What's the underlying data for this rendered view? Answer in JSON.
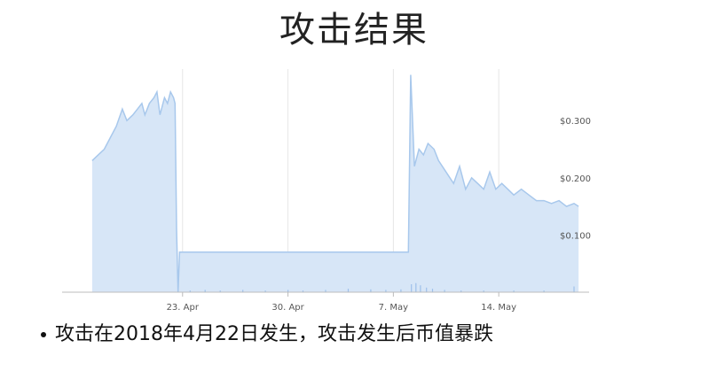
{
  "slide": {
    "title": "攻击结果",
    "bullet": "攻击在2018年4月22日发生，攻击发生后币值暴跌"
  },
  "chart_data": {
    "type": "area",
    "title": "",
    "xlabel": "",
    "ylabel": "",
    "x_axis": {
      "type": "date",
      "range": [
        "2018-04-15",
        "2018-05-20"
      ],
      "tick_labels": [
        "23. Apr",
        "30. Apr",
        "7. May",
        "14. May"
      ],
      "tick_dates": [
        "2018-04-23",
        "2018-04-30",
        "2018-05-07",
        "2018-05-14"
      ]
    },
    "y_axis": {
      "range": [
        0,
        0.39
      ],
      "position": "right",
      "ticks": [
        0.1,
        0.2,
        0.3
      ],
      "tick_labels": [
        "$0.100",
        "$0.200",
        "$0.300"
      ]
    },
    "grid": {
      "vertical": true,
      "horizontal": false
    },
    "colors": {
      "line": "#a8c8ec",
      "fill": "#d7e6f7",
      "volume": "#9ec0ea"
    },
    "series": [
      {
        "values": [
          [
            "2018-04-17",
            0.23
          ],
          [
            "2018-04-17.4",
            0.24
          ],
          [
            "2018-04-17.8",
            0.25
          ],
          [
            "2018-04-18.2",
            0.27
          ],
          [
            "2018-04-18.6",
            0.29
          ],
          [
            "2018-04-19.0",
            0.32
          ],
          [
            "2018-04-19.3",
            0.3
          ],
          [
            "2018-04-19.7",
            0.31
          ],
          [
            "2018-04-20.0",
            0.32
          ],
          [
            "2018-04-20.3",
            0.33
          ],
          [
            "2018-04-20.5",
            0.31
          ],
          [
            "2018-04-20.8",
            0.33
          ],
          [
            "2018-04-21.1",
            0.34
          ],
          [
            "2018-04-21.3",
            0.35
          ],
          [
            "2018-04-21.5",
            0.31
          ],
          [
            "2018-04-21.8",
            0.34
          ],
          [
            "2018-04-22.0",
            0.33
          ],
          [
            "2018-04-22.2",
            0.35
          ],
          [
            "2018-04-22.4",
            0.34
          ],
          [
            "2018-04-22.5",
            0.33
          ],
          [
            "2018-04-22.6",
            0.11
          ],
          [
            "2018-04-22.7",
            0.0
          ],
          [
            "2018-04-22.8",
            0.07
          ],
          [
            "2018-05-08.0",
            0.07
          ],
          [
            "2018-05-08.15",
            0.38
          ],
          [
            "2018-05-08.4",
            0.22
          ],
          [
            "2018-05-08.7",
            0.25
          ],
          [
            "2018-05-09.0",
            0.24
          ],
          [
            "2018-05-09.3",
            0.26
          ],
          [
            "2018-05-09.7",
            0.25
          ],
          [
            "2018-05-10.0",
            0.23
          ],
          [
            "2018-05-10.5",
            0.21
          ],
          [
            "2018-05-11.0",
            0.19
          ],
          [
            "2018-05-11.4",
            0.22
          ],
          [
            "2018-05-11.8",
            0.18
          ],
          [
            "2018-05-12.2",
            0.2
          ],
          [
            "2018-05-12.6",
            0.19
          ],
          [
            "2018-05-13.0",
            0.18
          ],
          [
            "2018-05-13.4",
            0.21
          ],
          [
            "2018-05-13.8",
            0.18
          ],
          [
            "2018-05-14.2",
            0.19
          ],
          [
            "2018-05-14.6",
            0.18
          ],
          [
            "2018-05-15.0",
            0.17
          ],
          [
            "2018-05-15.5",
            0.18
          ],
          [
            "2018-05-16.0",
            0.17
          ],
          [
            "2018-05-16.5",
            0.16
          ],
          [
            "2018-05-17.0",
            0.16
          ],
          [
            "2018-05-17.5",
            0.155
          ],
          [
            "2018-05-18.0",
            0.16
          ],
          [
            "2018-05-18.5",
            0.15
          ],
          [
            "2018-05-19.0",
            0.155
          ],
          [
            "2018-05-19.3",
            0.15
          ]
        ]
      }
    ],
    "volume_bars": [
      [
        "2018-04-23.5",
        0.003
      ],
      [
        "2018-04-24.5",
        0.004
      ],
      [
        "2018-04-25.5",
        0.003
      ],
      [
        "2018-04-27.0",
        0.004
      ],
      [
        "2018-04-28.5",
        0.003
      ],
      [
        "2018-04-30.0",
        0.004
      ],
      [
        "2018-05-01.0",
        0.003
      ],
      [
        "2018-05-02.5",
        0.004
      ],
      [
        "2018-05-04.0",
        0.006
      ],
      [
        "2018-05-05.5",
        0.005
      ],
      [
        "2018-05-06.5",
        0.004
      ],
      [
        "2018-05-07.5",
        0.005
      ],
      [
        "2018-05-08.2",
        0.014
      ],
      [
        "2018-05-08.5",
        0.016
      ],
      [
        "2018-05-08.8",
        0.012
      ],
      [
        "2018-05-09.2",
        0.008
      ],
      [
        "2018-05-09.6",
        0.006
      ],
      [
        "2018-05-10.4",
        0.004
      ],
      [
        "2018-05-11.5",
        0.003
      ],
      [
        "2018-05-13.0",
        0.003
      ],
      [
        "2018-05-15.0",
        0.003
      ],
      [
        "2018-05-17.0",
        0.003
      ],
      [
        "2018-05-19.0",
        0.01
      ]
    ]
  }
}
